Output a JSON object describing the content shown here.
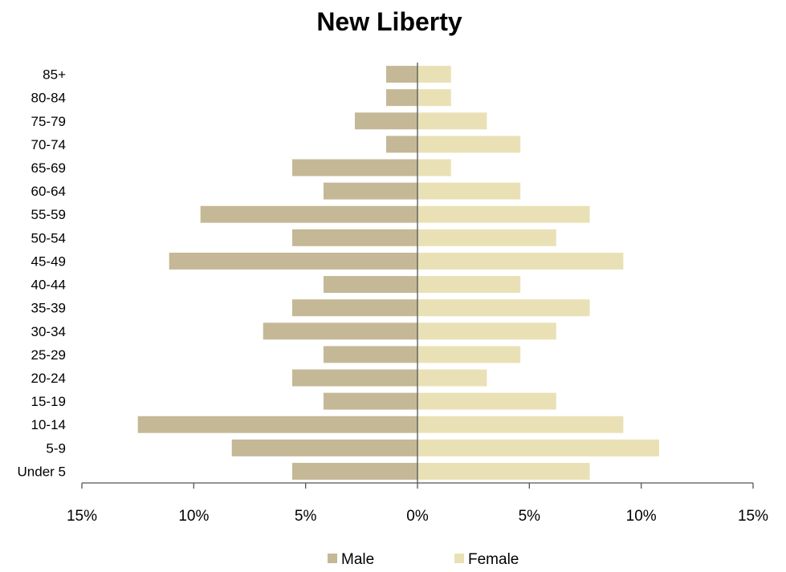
{
  "chart_data": {
    "type": "bar",
    "orientation": "horizontal",
    "title": "New Liberty",
    "categories": [
      "Under 5",
      "5-9",
      "10-14",
      "15-19",
      "20-24",
      "25-29",
      "30-34",
      "35-39",
      "40-44",
      "45-49",
      "50-54",
      "55-59",
      "60-64",
      "65-69",
      "70-74",
      "75-79",
      "80-84",
      "85+"
    ],
    "series": [
      {
        "name": "Male",
        "color": "#c4b896",
        "values": [
          5.6,
          8.3,
          12.5,
          4.2,
          5.6,
          4.2,
          6.9,
          5.6,
          4.2,
          11.1,
          5.6,
          9.7,
          4.2,
          5.6,
          1.4,
          2.8,
          1.4,
          1.4
        ]
      },
      {
        "name": "Female",
        "color": "#e9e1b5",
        "values": [
          7.7,
          10.8,
          9.2,
          6.2,
          3.1,
          4.6,
          6.2,
          7.7,
          4.6,
          9.2,
          6.2,
          7.7,
          4.6,
          1.5,
          4.6,
          3.1,
          1.5,
          1.5
        ]
      }
    ],
    "xlim": [
      -15,
      15
    ],
    "xticks": [
      -15,
      -10,
      -5,
      0,
      5,
      10,
      15
    ],
    "xtick_labels": [
      "15%",
      "10%",
      "5%",
      "0%",
      "5%",
      "10%",
      "15%"
    ],
    "legend_position": "bottom",
    "grid": false
  }
}
